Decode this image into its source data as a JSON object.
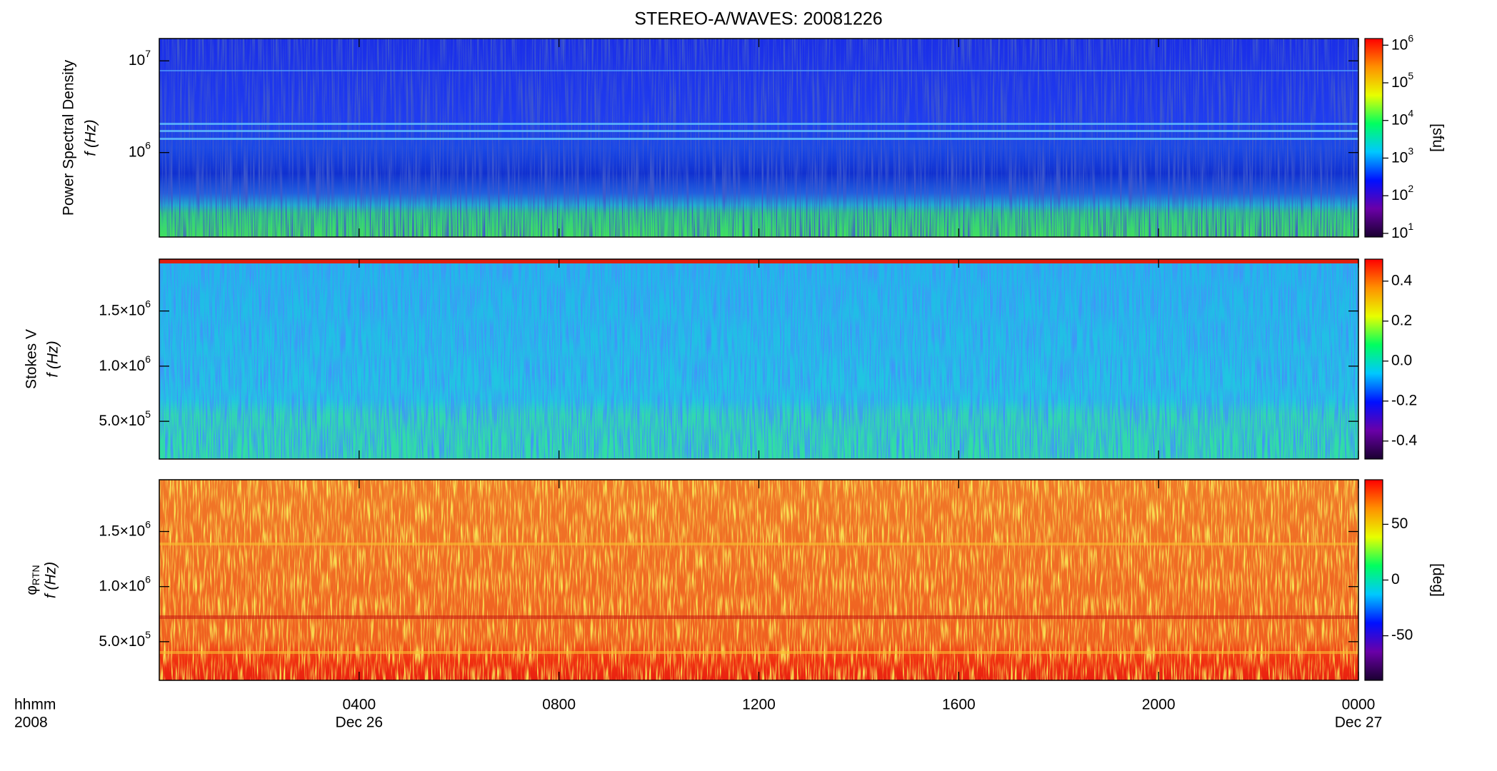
{
  "chart_data": {
    "type": "spectrogram",
    "title": "STEREO-A/WAVES: 20081226",
    "xlim": [
      0,
      24
    ],
    "xticks": [
      {
        "value": 4,
        "label": "0400"
      },
      {
        "value": 8,
        "label": "0800"
      },
      {
        "value": 12,
        "label": "1200"
      },
      {
        "value": 16,
        "label": "1600"
      },
      {
        "value": 20,
        "label": "2000"
      },
      {
        "value": 24,
        "label": "0000"
      }
    ],
    "x_dates": [
      {
        "value": 4,
        "label": "Dec 26"
      },
      {
        "value": 24,
        "label": "Dec 27"
      }
    ],
    "x_unit_label": "hhmm",
    "x_year_label": "2008",
    "colormap": [
      "#1a0030",
      "#6a00a8",
      "#0010ff",
      "#00c8ff",
      "#00ff60",
      "#e8ff00",
      "#ff9000",
      "#ff0000"
    ],
    "panels": [
      {
        "ylabel": "Power Spectral Density",
        "ylabel2": "f (Hz)",
        "ylog": true,
        "ylim": [
          120000,
          17500000
        ],
        "yticks": [
          {
            "value": 1000000,
            "label": "10^6"
          },
          {
            "value": 10000000,
            "label": "10^7"
          }
        ],
        "clog": true,
        "clim": [
          8,
          1500000
        ],
        "cticks": [
          {
            "value": 10,
            "label": "10^1"
          },
          {
            "value": 100,
            "label": "10^2"
          },
          {
            "value": 1000,
            "label": "10^3"
          },
          {
            "value": 10000,
            "label": "10^4"
          },
          {
            "value": 100000,
            "label": "10^5"
          },
          {
            "value": 1000000,
            "label": "10^6"
          }
        ],
        "clabel": "[sfu]"
      },
      {
        "ylabel": "Stokes V",
        "ylabel2": "f (Hz)",
        "ylog": false,
        "ylim": [
          158000,
          1970000
        ],
        "yticks": [
          {
            "value": 500000,
            "label": "5.0×10^5"
          },
          {
            "value": 1000000,
            "label": "1.0×10^6"
          },
          {
            "value": 1500000,
            "label": "1.5×10^6"
          }
        ],
        "clog": false,
        "clim": [
          -0.49,
          0.51
        ],
        "cticks": [
          -0.4,
          -0.2,
          {
            "value": 0,
            "label": "0.0"
          },
          0.2,
          0.4
        ]
      },
      {
        "ylabel": "φ_RTN",
        "ylabel2": "f (Hz)",
        "ylog": false,
        "ylim": [
          149000,
          1970000
        ],
        "yticks": [
          {
            "value": 500000,
            "label": "5.0×10^5"
          },
          {
            "value": 1000000,
            "label": "1.0×10^6"
          },
          {
            "value": 1500000,
            "label": "1.5×10^6"
          }
        ],
        "clog": false,
        "clim": [
          -90,
          90
        ],
        "cticks": [
          -50,
          0,
          50
        ],
        "clabel": "[deg]"
      }
    ]
  }
}
